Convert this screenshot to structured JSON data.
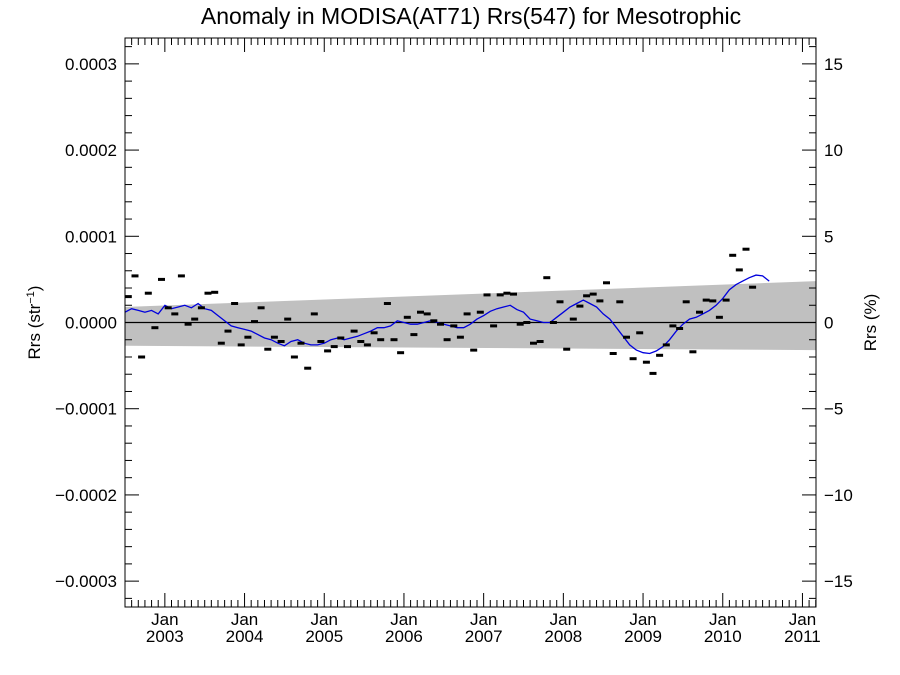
{
  "chart_data": {
    "type": "line",
    "title": "Anomaly in MODISA(AT71) Rrs(547) for Mesotrophic",
    "ylabel_left": {
      "base": "Rrs (str",
      "sup": "−1",
      "close": ")"
    },
    "ylabel_right": "Rrs (%)",
    "ylim_left": [
      -0.00033,
      0.00033
    ],
    "ylim_right": [
      -16.5,
      16.5
    ],
    "xlim": [
      2002.5,
      2011.17
    ],
    "left_ticks": [
      {
        "value": 0.0003,
        "label": "0.0003"
      },
      {
        "value": 0.0002,
        "label": "0.0002"
      },
      {
        "value": 0.0001,
        "label": "0.0001"
      },
      {
        "value": 0.0,
        "label": "0.0000"
      },
      {
        "value": -0.0001,
        "label": "−0.0001"
      },
      {
        "value": -0.0002,
        "label": "−0.0002"
      },
      {
        "value": -0.0003,
        "label": "−0.0003"
      }
    ],
    "right_ticks": [
      {
        "value": 15,
        "label": "15"
      },
      {
        "value": 10,
        "label": "10"
      },
      {
        "value": 5,
        "label": "5"
      },
      {
        "value": 0,
        "label": "0"
      },
      {
        "value": -5,
        "label": "−5"
      },
      {
        "value": -10,
        "label": "−10"
      },
      {
        "value": -15,
        "label": "−15"
      }
    ],
    "x_ticks": [
      {
        "value": 2003,
        "month": "Jan",
        "year": "2003"
      },
      {
        "value": 2004,
        "month": "Jan",
        "year": "2004"
      },
      {
        "value": 2005,
        "month": "Jan",
        "year": "2005"
      },
      {
        "value": 2006,
        "month": "Jan",
        "year": "2006"
      },
      {
        "value": 2007,
        "month": "Jan",
        "year": "2007"
      },
      {
        "value": 2008,
        "month": "Jan",
        "year": "2008"
      },
      {
        "value": 2009,
        "month": "Jan",
        "year": "2009"
      },
      {
        "value": 2010,
        "month": "Jan",
        "year": "2010"
      },
      {
        "value": 2011,
        "month": "Jan",
        "year": "2011"
      }
    ],
    "band": {
      "color": "#c0c0c0",
      "start": {
        "x": 2002.5,
        "upper": 1.8e-05,
        "lower": -2.7e-05
      },
      "end": {
        "x": 2011.17,
        "upper": 4.8e-05,
        "lower": -3.2e-05
      }
    },
    "zero_line_color": "#000000",
    "series": [
      {
        "kind": "monthly-anomaly-markers",
        "color": "#000000",
        "points": [
          [
            2002.542,
            3e-05
          ],
          [
            2002.625,
            5.4e-05
          ],
          [
            2002.708,
            -4e-05
          ],
          [
            2002.792,
            3.4e-05
          ],
          [
            2002.875,
            -6e-06
          ],
          [
            2002.958,
            5e-05
          ],
          [
            2003.042,
            1.7e-05
          ],
          [
            2003.125,
            1e-05
          ],
          [
            2003.208,
            5.4e-05
          ],
          [
            2003.292,
            -2e-06
          ],
          [
            2003.375,
            4e-06
          ],
          [
            2003.458,
            1.7e-05
          ],
          [
            2003.542,
            3.4e-05
          ],
          [
            2003.625,
            3.5e-05
          ],
          [
            2003.708,
            -2.4e-05
          ],
          [
            2003.792,
            -1e-05
          ],
          [
            2003.875,
            2.2e-05
          ],
          [
            2003.958,
            -2.6e-05
          ],
          [
            2004.042,
            -1.7e-05
          ],
          [
            2004.125,
            1e-06
          ],
          [
            2004.208,
            1.7e-05
          ],
          [
            2004.292,
            -3.1e-05
          ],
          [
            2004.375,
            -1.7e-05
          ],
          [
            2004.458,
            -2.2e-05
          ],
          [
            2004.542,
            4e-06
          ],
          [
            2004.625,
            -4e-05
          ],
          [
            2004.708,
            -2.4e-05
          ],
          [
            2004.792,
            -5.3e-05
          ],
          [
            2004.875,
            1e-05
          ],
          [
            2004.958,
            -2.2e-05
          ],
          [
            2005.042,
            -3.3e-05
          ],
          [
            2005.125,
            -2.8e-05
          ],
          [
            2005.208,
            -1.8e-05
          ],
          [
            2005.292,
            -2.8e-05
          ],
          [
            2005.375,
            -1e-05
          ],
          [
            2005.458,
            -2.2e-05
          ],
          [
            2005.542,
            -2.6e-05
          ],
          [
            2005.625,
            -1.2e-05
          ],
          [
            2005.708,
            -2e-05
          ],
          [
            2005.792,
            2.2e-05
          ],
          [
            2005.875,
            -2e-05
          ],
          [
            2005.958,
            -3.5e-05
          ],
          [
            2006.042,
            6e-06
          ],
          [
            2006.125,
            -1.4e-05
          ],
          [
            2006.208,
            1.2e-05
          ],
          [
            2006.292,
            1e-05
          ],
          [
            2006.375,
            2e-06
          ],
          [
            2006.458,
            -2e-06
          ],
          [
            2006.542,
            -2e-05
          ],
          [
            2006.625,
            -4e-06
          ],
          [
            2006.708,
            -1.7e-05
          ],
          [
            2006.792,
            1e-05
          ],
          [
            2006.875,
            -3.2e-05
          ],
          [
            2006.958,
            1.2e-05
          ],
          [
            2007.042,
            3.2e-05
          ],
          [
            2007.125,
            -4e-06
          ],
          [
            2007.208,
            3.2e-05
          ],
          [
            2007.292,
            3.4e-05
          ],
          [
            2007.375,
            3.3e-05
          ],
          [
            2007.458,
            -2e-06
          ],
          [
            2007.542,
            0.0
          ],
          [
            2007.625,
            -2.4e-05
          ],
          [
            2007.708,
            -2.2e-05
          ],
          [
            2007.792,
            5.2e-05
          ],
          [
            2007.875,
            0.0
          ],
          [
            2007.958,
            2.4e-05
          ],
          [
            2008.042,
            -3.1e-05
          ],
          [
            2008.125,
            4e-06
          ],
          [
            2008.208,
            1.9e-05
          ],
          [
            2008.292,
            3.1e-05
          ],
          [
            2008.375,
            3.3e-05
          ],
          [
            2008.458,
            2.5e-05
          ],
          [
            2008.542,
            4.6e-05
          ],
          [
            2008.625,
            -3.6e-05
          ],
          [
            2008.708,
            2.4e-05
          ],
          [
            2008.792,
            -1.7e-05
          ],
          [
            2008.875,
            -4.2e-05
          ],
          [
            2008.958,
            -1.2e-05
          ],
          [
            2009.042,
            -4.6e-05
          ],
          [
            2009.125,
            -5.9e-05
          ],
          [
            2009.208,
            -3.8e-05
          ],
          [
            2009.292,
            -2.6e-05
          ],
          [
            2009.375,
            -4e-06
          ],
          [
            2009.458,
            -7e-06
          ],
          [
            2009.542,
            2.4e-05
          ],
          [
            2009.625,
            -3.4e-05
          ],
          [
            2009.708,
            1.2e-05
          ],
          [
            2009.792,
            2.6e-05
          ],
          [
            2009.875,
            2.5e-05
          ],
          [
            2009.958,
            6e-06
          ],
          [
            2010.042,
            2.6e-05
          ],
          [
            2010.125,
            7.8e-05
          ],
          [
            2010.208,
            6.1e-05
          ],
          [
            2010.292,
            8.5e-05
          ],
          [
            2010.375,
            4.1e-05
          ]
        ]
      },
      {
        "kind": "running-mean-line",
        "color": "#0000dd",
        "points": [
          [
            2002.5,
            1.2e-05
          ],
          [
            2002.583,
            1.6e-05
          ],
          [
            2002.667,
            1.4e-05
          ],
          [
            2002.75,
            1.2e-05
          ],
          [
            2002.833,
            1.4e-05
          ],
          [
            2002.917,
            1e-05
          ],
          [
            2003.0,
            2e-05
          ],
          [
            2003.083,
            1.6e-05
          ],
          [
            2003.167,
            1.8e-05
          ],
          [
            2003.25,
            2e-05
          ],
          [
            2003.333,
            1.7e-05
          ],
          [
            2003.417,
            2.2e-05
          ],
          [
            2003.5,
            1.6e-05
          ],
          [
            2003.583,
            1.4e-05
          ],
          [
            2003.667,
            8e-06
          ],
          [
            2003.75,
            2e-06
          ],
          [
            2003.833,
            -4e-06
          ],
          [
            2003.917,
            -6e-06
          ],
          [
            2004.0,
            -8e-06
          ],
          [
            2004.083,
            -1e-05
          ],
          [
            2004.167,
            -1.4e-05
          ],
          [
            2004.25,
            -1.8e-05
          ],
          [
            2004.333,
            -2e-05
          ],
          [
            2004.417,
            -2.4e-05
          ],
          [
            2004.5,
            -2.7e-05
          ],
          [
            2004.583,
            -2.2e-05
          ],
          [
            2004.667,
            -2e-05
          ],
          [
            2004.75,
            -2.4e-05
          ],
          [
            2004.833,
            -2.6e-05
          ],
          [
            2004.917,
            -2.6e-05
          ],
          [
            2005.0,
            -2.4e-05
          ],
          [
            2005.083,
            -2e-05
          ],
          [
            2005.167,
            -1.8e-05
          ],
          [
            2005.25,
            -2e-05
          ],
          [
            2005.333,
            -1.8e-05
          ],
          [
            2005.417,
            -1.6e-05
          ],
          [
            2005.5,
            -1.3e-05
          ],
          [
            2005.583,
            -1e-05
          ],
          [
            2005.667,
            -6e-06
          ],
          [
            2005.75,
            -6e-06
          ],
          [
            2005.833,
            -4e-06
          ],
          [
            2005.917,
            2e-06
          ],
          [
            2006.0,
            0.0
          ],
          [
            2006.083,
            -2e-06
          ],
          [
            2006.167,
            -2e-06
          ],
          [
            2006.25,
            0.0
          ],
          [
            2006.333,
            2e-06
          ],
          [
            2006.417,
            0.0
          ],
          [
            2006.5,
            -2e-06
          ],
          [
            2006.583,
            -4e-06
          ],
          [
            2006.667,
            -6e-06
          ],
          [
            2006.75,
            -6e-06
          ],
          [
            2006.833,
            -2e-06
          ],
          [
            2006.917,
            4e-06
          ],
          [
            2007.0,
            8e-06
          ],
          [
            2007.083,
            1.3e-05
          ],
          [
            2007.167,
            1.6e-05
          ],
          [
            2007.25,
            1.8e-05
          ],
          [
            2007.333,
            2e-05
          ],
          [
            2007.417,
            1.5e-05
          ],
          [
            2007.5,
            1.2e-05
          ],
          [
            2007.583,
            4e-06
          ],
          [
            2007.667,
            2e-06
          ],
          [
            2007.75,
            0.0
          ],
          [
            2007.833,
            0.0
          ],
          [
            2007.917,
            6e-06
          ],
          [
            2008.0,
            1.2e-05
          ],
          [
            2008.083,
            1.8e-05
          ],
          [
            2008.167,
            2.2e-05
          ],
          [
            2008.25,
            2.6e-05
          ],
          [
            2008.333,
            2.2e-05
          ],
          [
            2008.417,
            1.8e-05
          ],
          [
            2008.5,
            1e-05
          ],
          [
            2008.583,
            4e-06
          ],
          [
            2008.667,
            -6e-06
          ],
          [
            2008.75,
            -1.6e-05
          ],
          [
            2008.833,
            -2.6e-05
          ],
          [
            2008.917,
            -3.2e-05
          ],
          [
            2009.0,
            -3.5e-05
          ],
          [
            2009.083,
            -3.6e-05
          ],
          [
            2009.167,
            -3.3e-05
          ],
          [
            2009.25,
            -2.8e-05
          ],
          [
            2009.333,
            -2e-05
          ],
          [
            2009.417,
            -1e-05
          ],
          [
            2009.5,
            -2e-06
          ],
          [
            2009.583,
            4e-06
          ],
          [
            2009.667,
            6e-06
          ],
          [
            2009.75,
            1e-05
          ],
          [
            2009.833,
            1.4e-05
          ],
          [
            2009.917,
            2e-05
          ],
          [
            2010.0,
            2.8e-05
          ],
          [
            2010.083,
            3.8e-05
          ],
          [
            2010.167,
            4.4e-05
          ],
          [
            2010.25,
            4.8e-05
          ],
          [
            2010.333,
            5.2e-05
          ],
          [
            2010.417,
            5.5e-05
          ],
          [
            2010.5,
            5.4e-05
          ],
          [
            2010.583,
            4.8e-05
          ]
        ]
      }
    ]
  }
}
